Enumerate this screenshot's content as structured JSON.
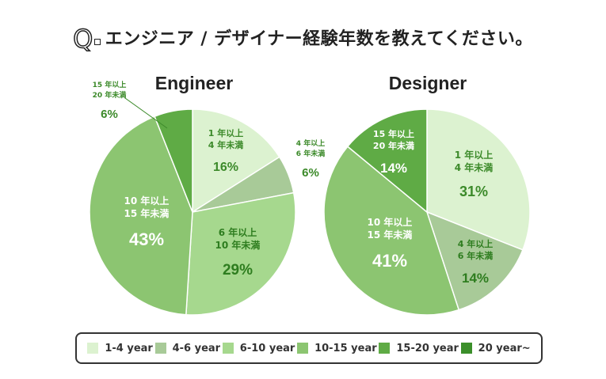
{
  "header": {
    "q_letter": "Q",
    "question": "エンジニア / デザイナー経験年数を教えてください。"
  },
  "colors": [
    "#dcf2d0",
    "#a8ca98",
    "#a6d88e",
    "#8cc571",
    "#5fab45",
    "#3b8f2a"
  ],
  "chart_data": [
    {
      "type": "pie",
      "title": "Engineer",
      "categories": [
        "1-4 year",
        "4-6 year",
        "6-10 year",
        "10-15 year",
        "15-20 year",
        "20 year~"
      ],
      "values": [
        16,
        6,
        29,
        43,
        6,
        0
      ],
      "slice_labels": [
        [
          "1 年以上",
          "4 年未満"
        ],
        [
          "4 年以上",
          "6 年未満"
        ],
        [
          "6 年以上",
          "10 年未満"
        ],
        [
          "10 年以上",
          "15 年未満"
        ],
        [
          "15 年以上",
          "20 年未満"
        ],
        []
      ],
      "value_labels": [
        "16%",
        "6%",
        "29%",
        "43%",
        "6%",
        ""
      ]
    },
    {
      "type": "pie",
      "title": "Designer",
      "categories": [
        "1-4 year",
        "4-6 year",
        "6-10 year",
        "10-15 year",
        "15-20 year",
        "20 year~"
      ],
      "values": [
        31,
        14,
        0,
        41,
        14,
        0
      ],
      "slice_labels": [
        [
          "1 年以上",
          "4 年未満"
        ],
        [
          "4 年以上",
          "6 年未満"
        ],
        [],
        [
          "10 年以上",
          "15 年未満"
        ],
        [
          "15 年以上",
          "20 年未満"
        ],
        []
      ],
      "value_labels": [
        "31%",
        "14%",
        "",
        "41%",
        "14%",
        ""
      ]
    }
  ],
  "legend": [
    "1-4 year",
    "4-6 year",
    "6-10 year",
    "10-15 year",
    "15-20 year",
    "20 year~"
  ]
}
